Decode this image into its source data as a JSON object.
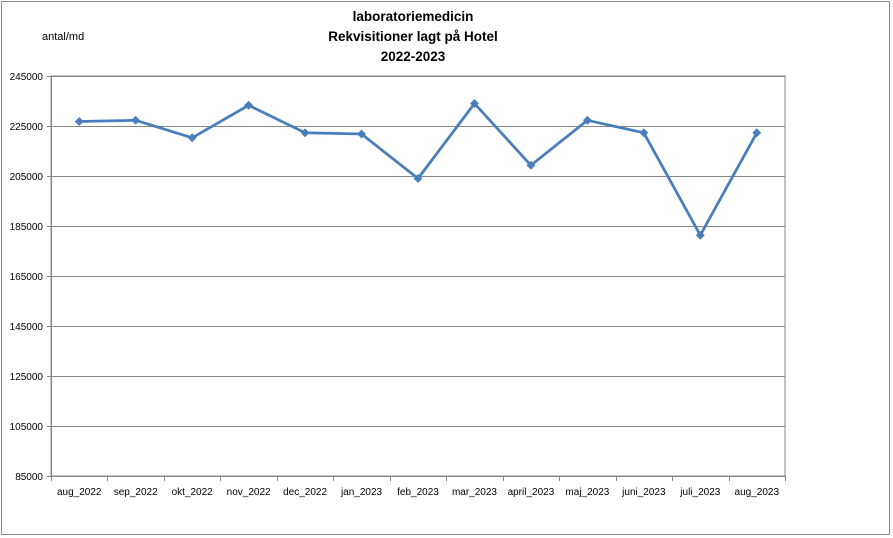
{
  "chart_data": {
    "type": "line",
    "title": [
      "laboratoriemedicin",
      "Rekvisitioner  lagt på Hotel",
      "2022-2023"
    ],
    "ylabel": "antal/md",
    "xlabel": "",
    "ylim": [
      85000,
      245000
    ],
    "yticks": [
      85000,
      105000,
      125000,
      145000,
      165000,
      185000,
      205000,
      225000,
      245000
    ],
    "ytick_labels": [
      "85000",
      "105000",
      "125000",
      "145000",
      "165000",
      "185000",
      "205000",
      "225000",
      "245000"
    ],
    "grid": true,
    "legend": "none",
    "categories": [
      "aug_2022",
      "sep_2022",
      "okt_2022",
      "nov_2022",
      "dec_2022",
      "jan_2023",
      "feb_2023",
      "mar_2023",
      "april_2023",
      "maj_2023",
      "juni_2023",
      "juli_2023",
      "aug_2023"
    ],
    "series": [
      {
        "values": [
          226800,
          227300,
          220300,
          233300,
          222300,
          221800,
          204000,
          234000,
          209300,
          227300,
          222300,
          181300,
          222300
        ],
        "color": "#4a7ebb"
      }
    ]
  }
}
